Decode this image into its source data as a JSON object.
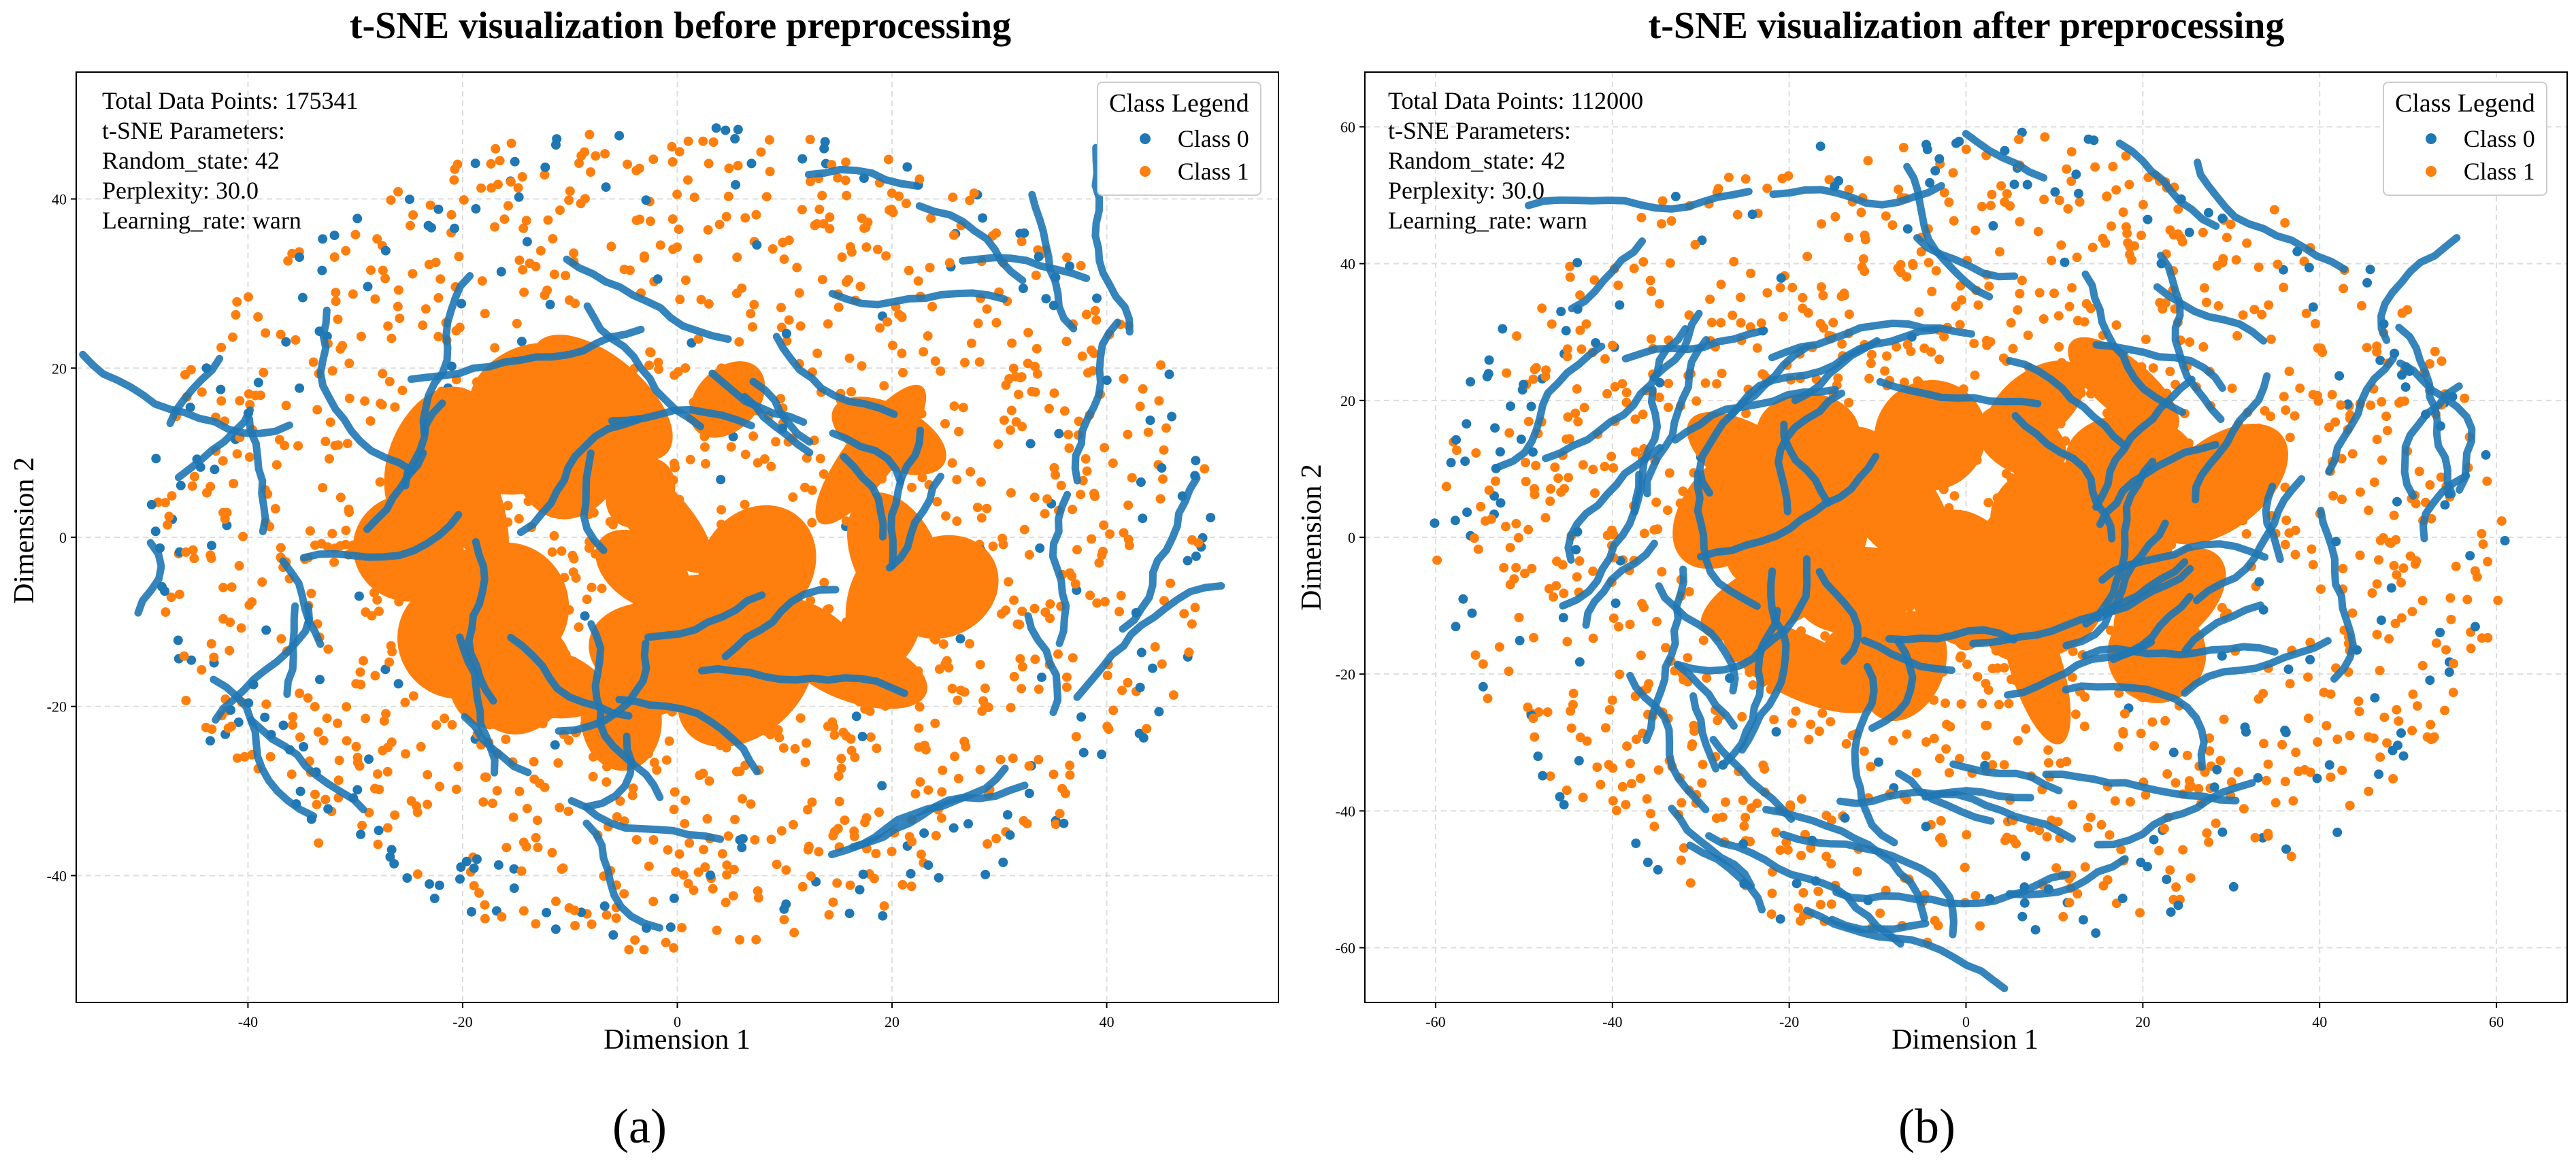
{
  "colors": {
    "class0": "#1f77b4",
    "class1": "#ff7f0e"
  },
  "captions": {
    "a": "(a)",
    "b": "(b)"
  },
  "chart_data": [
    {
      "type": "scatter",
      "title": "t-SNE visualization before preprocessing",
      "xlabel": "Dimension 1",
      "ylabel": "Dimension 2",
      "xlim": [
        -56,
        56
      ],
      "ylim": [
        -55,
        55
      ],
      "xticks": [
        -40,
        -20,
        0,
        20,
        40
      ],
      "yticks": [
        -40,
        -20,
        0,
        20,
        40
      ],
      "grid": true,
      "annotation": [
        "Total Data Points: 175341",
        "t-SNE Parameters:",
        "Random_state: 42",
        "Perplexity: 30.0",
        "Learning_rate: warn"
      ],
      "legend": {
        "title": "Class Legend",
        "position": "top-right",
        "entries": [
          "Class 0",
          "Class 1"
        ]
      },
      "series": [
        {
          "name": "Class 0",
          "color": "#1f77b4",
          "distribution": "outer-ring curves and scattered strands",
          "radius": 50
        },
        {
          "name": "Class 1",
          "color": "#ff7f0e",
          "distribution": "dense central cluster with surrounding points",
          "radius": 50
        }
      ]
    },
    {
      "type": "scatter",
      "title": "t-SNE visualization after preprocessing",
      "xlabel": "Dimension 1",
      "ylabel": "Dimension 2",
      "xlim": [
        -68,
        68
      ],
      "ylim": [
        -68,
        68
      ],
      "xticks": [
        -60,
        -40,
        -20,
        0,
        20,
        40,
        60
      ],
      "yticks": [
        -60,
        -40,
        -20,
        0,
        20,
        40,
        60
      ],
      "grid": true,
      "annotation": [
        "Total Data Points: 112000",
        "t-SNE Parameters:",
        "Random_state: 42",
        "Perplexity: 30.0",
        "Learning_rate: warn"
      ],
      "legend": {
        "title": "Class Legend",
        "position": "top-right",
        "entries": [
          "Class 0",
          "Class 1"
        ]
      },
      "series": [
        {
          "name": "Class 0",
          "color": "#1f77b4",
          "distribution": "many long curves throughout",
          "radius": 61
        },
        {
          "name": "Class 1",
          "color": "#ff7f0e",
          "distribution": "central clusters with surrounding points",
          "radius": 61
        }
      ]
    }
  ]
}
